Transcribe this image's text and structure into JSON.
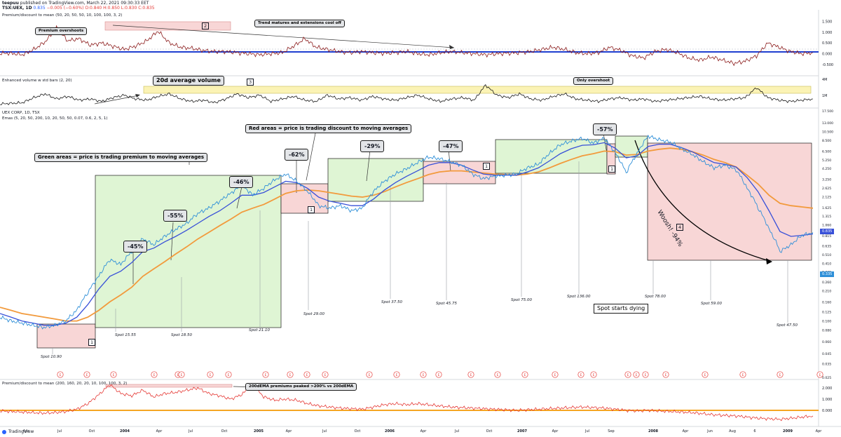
{
  "header": {
    "author": "teepuu",
    "published": "published on TradingView.com, March 22, 2021 09:30:33 EET",
    "symbol": "TSX:UEX, 1D",
    "last": "0.835",
    "change": "−0.005 (−0.60%)",
    "ohlc": "O:0.840 H:0.850 L:0.830 C:0.835"
  },
  "panels": {
    "premium_top": {
      "title": "Premium/discount to mean (50, 20, 50, 50, 10, 100, 100, 3, 2)"
    },
    "volume": {
      "title": "Enhanced volume w std bars (2, 20)"
    },
    "price": {
      "title": "UEX CORP, 1D, TSX",
      "subtitle": "Emas (5, 20, 50, 200, 10, 20, 50, 50, 0.07, 0.6, 2, 5, 1)"
    },
    "premium_bottom": {
      "title": "Premium/discount to mean (200, 160, 20, 20, 10, 100, 100, 3, 2)"
    }
  },
  "annotations": {
    "premium_overshoots": "Premium overshoots",
    "trend_matures": "Trend matures and extensions cool off",
    "avg_volume": "20d average volume",
    "only_overshoot": "Only overshoot",
    "red_areas": "Red areas = price is trading discount to moving averages",
    "green_areas": "Green areas = price is trading premium to moving averages",
    "spot_dying": "Spot starts dying",
    "woosh": "Woosh! -94%",
    "ema_peak": "200dEMA premiums peaked >200% vs 200dEMA"
  },
  "box_numbers": [
    "1",
    "2",
    "3",
    "4"
  ],
  "drawdowns": [
    "-45%",
    "-55%",
    "-46%",
    "-62%",
    "-29%",
    "-47%",
    "-57%"
  ],
  "spots": [
    "Spot 10.90",
    "Spot 15.55",
    "Spot 18.50",
    "Spot 21.10",
    "Spot 29.00",
    "Spot 37.50",
    "Spot 45.75",
    "Spot 75.00",
    "Spot 136.00",
    "Spot 78.00",
    "Spot 59.00",
    "Spot 47.50"
  ],
  "event_marker": "E",
  "colors": {
    "ema_fast": "#3850d8",
    "ema_slow": "#f29a3c",
    "price": "#2e8fd8",
    "green_box": "#dff5d4",
    "red_box": "#f8d6d6",
    "yellow_band": "#fbf3b5",
    "zero_line": "#1f3fd0",
    "osc": "#8b1b1b",
    "osc_bottom": "#e53935",
    "osc_base": "#f5a623"
  },
  "footer": {
    "brand": "TradingView"
  },
  "chart_data": [
    {
      "type": "line",
      "title": "Premium/discount to mean (50, 20, 50, 50, 10, 100, 100, 3, 2)",
      "y_ticks": [
        "1.500",
        "1.000",
        "0.500",
        "0.000",
        "-0.500"
      ],
      "ylim": [
        -0.7,
        1.65
      ],
      "series": [
        {
          "values": [
            0.02,
            0.02,
            -0.05,
            0.2,
            0.55,
            1.2,
            0.6,
            0.7,
            0.4,
            0.5,
            0.35,
            0.2,
            0.35,
            0.6,
            1.05,
            0.5,
            0.3,
            0.25,
            0.15,
            0.1,
            0.1,
            0.05,
            0.0,
            -0.05,
            0.0,
            0.05,
            0.35,
            0.7,
            0.3,
            0.2,
            0.1,
            0.05,
            0.1,
            0.05,
            0.02,
            0.05,
            0.1,
            0.0,
            -0.05,
            0.05,
            0.1,
            0.05,
            0.0,
            -0.05,
            0.0,
            0.02,
            0.05,
            0.1,
            0.2,
            0.3,
            0.2,
            0.05,
            0.0,
            0.05,
            0.3,
            0.15,
            -0.1,
            -0.2,
            0.1,
            0.2,
            0.05,
            -0.2,
            -0.3,
            -0.15,
            -0.3,
            -0.45,
            -0.35,
            -0.1,
            0.5,
            0.3,
            0.1,
            0.0,
            0.05
          ]
        }
      ]
    },
    {
      "type": "line",
      "title": "Enhanced volume w std bars (2, 20)",
      "y_ticks": [
        "4M",
        "1M"
      ],
      "series": [
        {
          "values": [
            0.1,
            0.15,
            0.2,
            0.6,
            0.9,
            0.5,
            0.7,
            0.4,
            0.5,
            0.3,
            0.6,
            0.8,
            0.5,
            0.4,
            0.7,
            0.9,
            0.5,
            0.3,
            0.4,
            0.2,
            0.5,
            0.9,
            0.6,
            0.8,
            0.3,
            0.5,
            0.7,
            0.4,
            0.3,
            0.8,
            0.5,
            0.6,
            0.4,
            0.7,
            0.5,
            0.4,
            0.6,
            0.8,
            0.5,
            0.3,
            0.5,
            0.6,
            0.4,
            1.6,
            0.8,
            0.6,
            0.9,
            0.5,
            0.4,
            0.7,
            0.9,
            0.5,
            0.4,
            0.3,
            0.5,
            0.6,
            0.4,
            0.5,
            0.3,
            0.4,
            0.5,
            0.6,
            0.7,
            0.5,
            0.4,
            0.5,
            0.6,
            1.4,
            0.6,
            0.4,
            0.3,
            0.4,
            0.5
          ]
        }
      ]
    },
    {
      "type": "line",
      "title": "UEX CORP, 1D, TSX",
      "y_scale": "log",
      "y_ticks": [
        "17.500",
        "13.000",
        "10.500",
        "8.500",
        "6.500",
        "5.250",
        "4.250",
        "3.250",
        "2.625",
        "2.125",
        "1.625",
        "1.315",
        "1.060",
        "0.815",
        "0.635",
        "0.510",
        "0.410",
        "0.335",
        "0.260",
        "0.210",
        "0.160",
        "0.125",
        "0.100",
        "0.080",
        "0.060",
        "0.045",
        "0.035",
        "0.025"
      ],
      "x_ticks": [
        "Apr",
        "Jul",
        "Oct",
        "2004",
        "Apr",
        "Jul",
        "Oct",
        "2005",
        "Apr",
        "Jul",
        "Oct",
        "2006",
        "Apr",
        "Jul",
        "Oct",
        "2007",
        "Apr",
        "Jul",
        "Sep",
        "2008",
        "Apr",
        "Jun",
        "Aug",
        "6",
        "2009",
        "Apr"
      ],
      "series": [
        {
          "name": "price",
          "values": [
            0.11,
            0.1,
            0.095,
            0.09,
            0.085,
            0.09,
            0.1,
            0.13,
            0.2,
            0.3,
            0.45,
            0.4,
            0.55,
            0.75,
            0.65,
            0.8,
            0.95,
            1.1,
            1.4,
            1.6,
            1.9,
            2.3,
            2.8,
            2.2,
            2.6,
            3.2,
            3.7,
            3.1,
            2.4,
            1.7,
            1.6,
            1.7,
            1.5,
            1.6,
            2.4,
            3.1,
            3.7,
            4.2,
            4.9,
            5.6,
            5.4,
            5.0,
            4.6,
            3.7,
            3.3,
            3.5,
            3.6,
            3.7,
            4.3,
            4.7,
            6.1,
            7.6,
            8.3,
            8.9,
            7.9,
            8.9,
            6.2,
            3.8,
            6.1,
            9.4,
            8.6,
            8.1,
            6.9,
            6.0,
            5.0,
            4.3,
            4.6,
            4.1,
            2.6,
            1.6,
            0.95,
            0.55,
            0.65,
            0.82,
            0.88
          ]
        },
        {
          "name": "ema_fast",
          "values": [
            0.12,
            0.11,
            0.1,
            0.095,
            0.09,
            0.09,
            0.095,
            0.11,
            0.15,
            0.22,
            0.3,
            0.34,
            0.42,
            0.55,
            0.6,
            0.7,
            0.8,
            0.93,
            1.1,
            1.3,
            1.5,
            1.8,
            2.2,
            2.2,
            2.35,
            2.7,
            3.1,
            3.0,
            2.6,
            2.1,
            1.9,
            1.8,
            1.7,
            1.7,
            2.0,
            2.5,
            3.0,
            3.5,
            4.0,
            4.6,
            4.9,
            4.9,
            4.6,
            4.1,
            3.7,
            3.6,
            3.6,
            3.6,
            3.9,
            4.3,
            5.1,
            6.1,
            6.9,
            7.5,
            7.6,
            8.0,
            7.0,
            5.5,
            5.8,
            7.3,
            7.7,
            7.7,
            7.1,
            6.4,
            5.6,
            4.9,
            4.7,
            4.4,
            3.4,
            2.4,
            1.5,
            0.9,
            0.8,
            0.82,
            0.85
          ]
        },
        {
          "name": "ema_slow",
          "values": [
            0.14,
            0.13,
            0.12,
            0.115,
            0.11,
            0.105,
            0.1,
            0.1,
            0.11,
            0.13,
            0.16,
            0.19,
            0.23,
            0.3,
            0.36,
            0.43,
            0.52,
            0.62,
            0.75,
            0.88,
            1.04,
            1.22,
            1.45,
            1.6,
            1.75,
            2.0,
            2.3,
            2.45,
            2.5,
            2.45,
            2.35,
            2.25,
            2.15,
            2.1,
            2.2,
            2.4,
            2.7,
            3.0,
            3.3,
            3.65,
            3.9,
            4.0,
            4.0,
            3.9,
            3.8,
            3.7,
            3.65,
            3.6,
            3.7,
            3.9,
            4.3,
            4.8,
            5.3,
            5.8,
            6.1,
            6.5,
            6.4,
            5.9,
            6.0,
            6.5,
            6.8,
            7.0,
            6.8,
            6.4,
            5.9,
            5.3,
            4.9,
            4.4,
            3.6,
            2.9,
            2.2,
            1.8,
            1.7,
            1.65,
            1.6
          ]
        }
      ]
    },
    {
      "type": "line",
      "title": "Premium/discount to mean (200, 160, 20, 20, 10, 100, 100, 3, 2)",
      "y_ticks": [
        "2.000",
        "1.000",
        "0.000"
      ],
      "series": [
        {
          "values": [
            -0.05,
            -0.1,
            -0.15,
            -0.2,
            -0.25,
            -0.2,
            -0.1,
            0.1,
            0.6,
            1.4,
            2.3,
            1.5,
            1.3,
            1.8,
            1.2,
            1.5,
            1.6,
            1.8,
            2.0,
            1.5,
            1.3,
            1.0,
            1.4,
            2.3,
            1.2,
            0.9,
            1.0,
            0.9,
            0.6,
            0.4,
            0.3,
            0.2,
            0.15,
            0.1,
            0.3,
            0.5,
            0.6,
            0.5,
            0.6,
            0.5,
            0.4,
            0.3,
            0.25,
            0.2,
            0.15,
            0.1,
            0.05,
            0.0,
            0.05,
            0.1,
            0.15,
            0.2,
            0.25,
            0.3,
            0.25,
            0.2,
            0.1,
            0.0,
            -0.05,
            0.0,
            -0.05,
            -0.1,
            -0.15,
            -0.2,
            -0.3,
            -0.4,
            -0.45,
            -0.5,
            -0.6,
            -0.7,
            -0.75,
            -0.8,
            -0.7,
            -0.6,
            -0.5
          ]
        }
      ]
    }
  ]
}
